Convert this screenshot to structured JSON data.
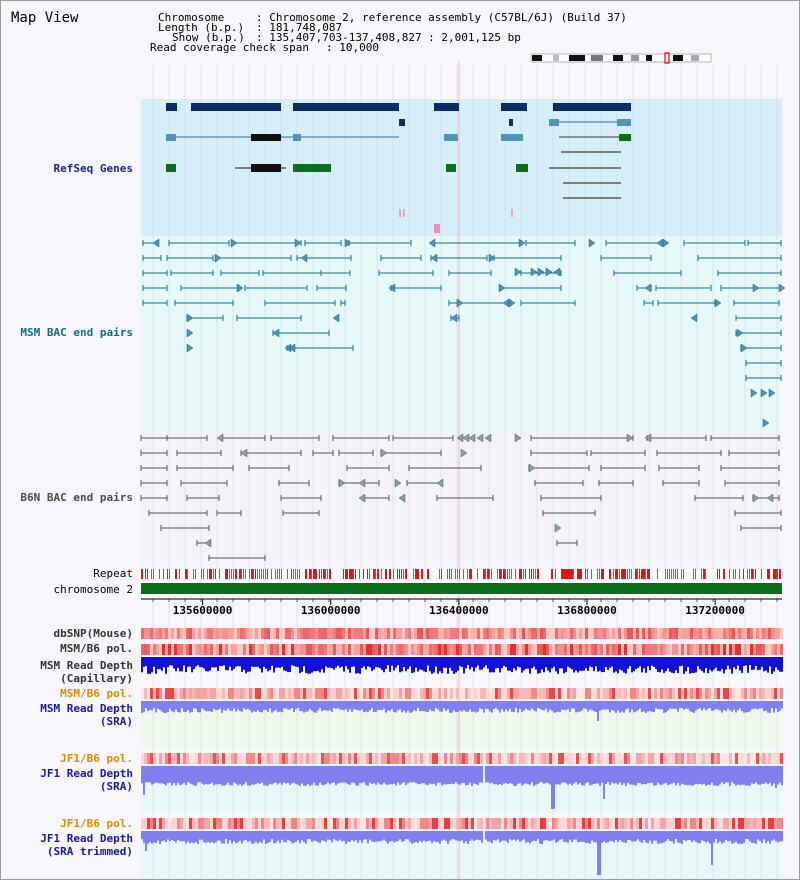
{
  "page": {
    "title": "Map View"
  },
  "info": {
    "chromosome_key": "Chromosome",
    "chromosome_val": ": Chromosome 2, reference assembly (C57BL/6J) (Build 37)",
    "length_key": "Length (b.p.)",
    "length_val": ": 181,748,087",
    "show_key": "Show (b.p.)",
    "show_val": ": 135,407,703-137,408,827 : 2,001,125 bp",
    "read_span_key": "Read coverage check span",
    "read_span_val": ": 10,000"
  },
  "tracks": {
    "refseq": {
      "label": "RefSeq Genes",
      "color": "#1f1f9e"
    },
    "msm_bac": {
      "label": "MSM BAC end pairs",
      "color": "#10707f"
    },
    "b6n_bac": {
      "label": "B6N BAC end pairs",
      "color": "#4a4a4a"
    },
    "repeat": {
      "label": "Repeat"
    },
    "chromosome": {
      "label": "chromosome 2"
    },
    "dbsnp": {
      "label": "dbSNP(Mouse)"
    },
    "msm_b6_pol": {
      "label": "MSM/B6 pol."
    },
    "msm_read_depth_cap": {
      "label": "MSM Read Depth\n(Capillary)"
    },
    "msm_b6_pol_2": {
      "label": "MSM/B6 pol.",
      "color": "#e08a00"
    },
    "msm_read_depth_sra": {
      "label": "MSM Read Depth\n(SRA)",
      "color": "#1a1aa0"
    },
    "jf1_b6_pol": {
      "label": "JF1/B6 pol.",
      "color": "#e08a00"
    },
    "jf1_read_depth_sra": {
      "label": "JF1 Read Depth\n(SRA)",
      "color": "#1a1aa0"
    },
    "jf1_b6_pol_2": {
      "label": "JF1/B6 pol.",
      "color": "#e08a00"
    },
    "jf1_read_depth_trim": {
      "label": "JF1 Read Depth\n(SRA trimmed)",
      "color": "#1a1aa0"
    }
  },
  "axis": {
    "ticks": [
      "135600000",
      "136000000",
      "136400000",
      "136800000",
      "137200000"
    ],
    "tick_values": [
      135600000,
      136000000,
      136400000,
      136800000,
      137200000
    ],
    "start_bp": 135407703,
    "end_bp": 137408827
  },
  "colors": {
    "refseq_bg": "#d6eef9",
    "msm_bg": "#e6f8f8",
    "b6n_bg": "#f4f4f8",
    "gene_dark": "#0c2a66",
    "gene_light": "#4f93b8",
    "gene_green": "#0a6e1a",
    "chromosome_bar": "#0a6e1a",
    "depth_dark": "#1010d8",
    "depth_light": "#8080f0",
    "pol_red": "#e83a3a"
  }
}
